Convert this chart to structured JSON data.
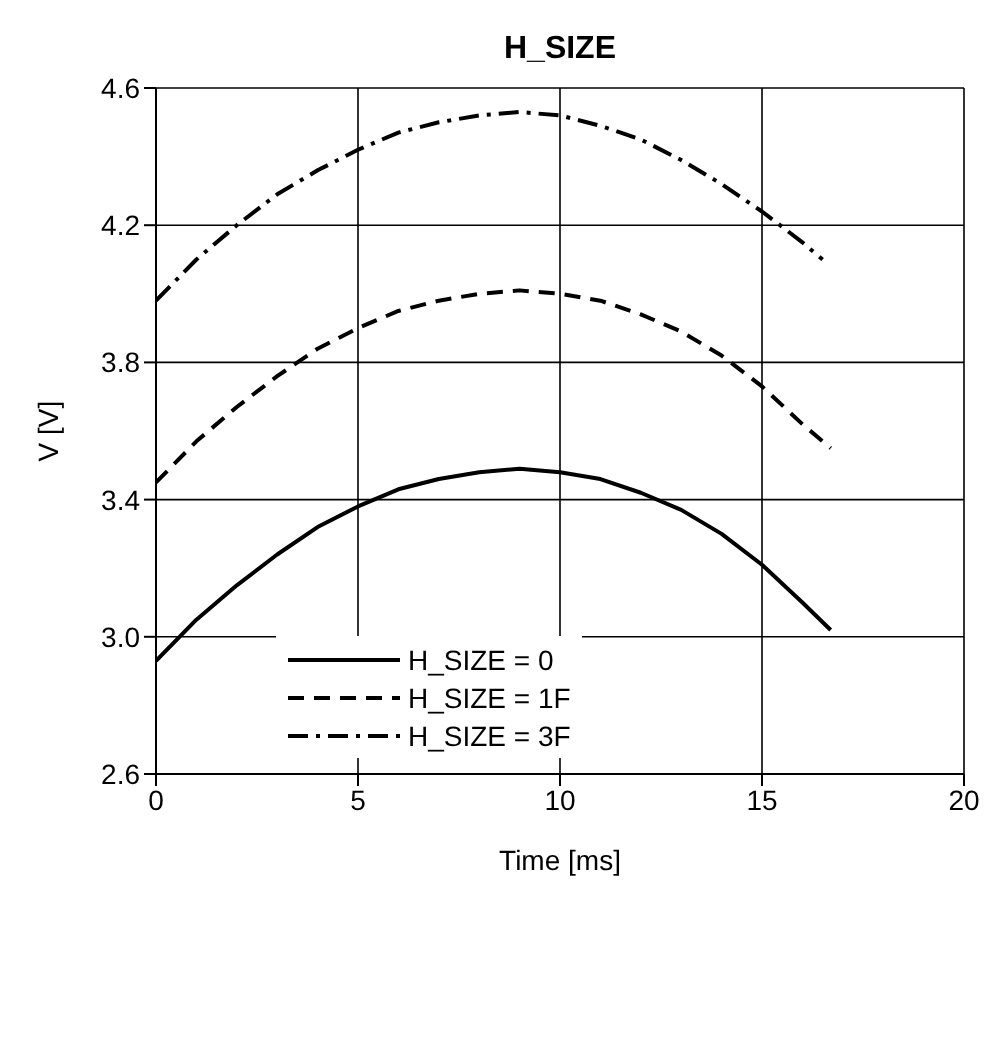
{
  "chart_data": {
    "type": "line",
    "title": "H_SIZE",
    "xlabel": "Time [ms]",
    "ylabel": "V [V]",
    "xlim": [
      0,
      20
    ],
    "xticks": [
      0,
      5,
      10,
      15,
      20
    ],
    "ylim": [
      2.6,
      4.6
    ],
    "yticks": [
      2.6,
      {
        "value": 3,
        "label": "3.0"
      },
      3.4,
      3.8,
      4.2,
      4.6
    ],
    "grid": true,
    "legend": "bottom",
    "marker": "none",
    "series": [
      {
        "name": "H_SIZE = 0",
        "color": "#000000",
        "line_style": "solid",
        "x": [
          0,
          1,
          2,
          3,
          4,
          5,
          6,
          7,
          8,
          9,
          10,
          11,
          12,
          13,
          14,
          15,
          16,
          16.7
        ],
        "values": [
          2.93,
          3.05,
          3.15,
          3.24,
          3.32,
          3.38,
          3.43,
          3.46,
          3.48,
          3.49,
          3.48,
          3.46,
          3.42,
          3.37,
          3.3,
          3.21,
          3.1,
          3.02
        ]
      },
      {
        "name": "H_SIZE = 1F",
        "color": "#000000",
        "line_style": "dashed",
        "x": [
          0,
          1,
          2,
          3,
          4,
          5,
          6,
          7,
          8,
          9,
          10,
          11,
          12,
          13,
          14,
          15,
          16,
          16.7
        ],
        "values": [
          3.45,
          3.57,
          3.67,
          3.76,
          3.84,
          3.9,
          3.95,
          3.98,
          4.0,
          4.01,
          4.0,
          3.98,
          3.94,
          3.89,
          3.82,
          3.73,
          3.62,
          3.55
        ]
      },
      {
        "name": "H_SIZE = 3F",
        "color": "#000000",
        "line_style": "dashdot",
        "x": [
          0,
          1,
          2,
          3,
          4,
          5,
          6,
          7,
          8,
          9,
          10,
          11,
          12,
          13,
          14,
          15,
          16,
          16.5
        ],
        "values": [
          3.98,
          4.1,
          4.2,
          4.29,
          4.36,
          4.42,
          4.47,
          4.5,
          4.52,
          4.53,
          4.52,
          4.49,
          4.45,
          4.39,
          4.32,
          4.24,
          4.15,
          4.1
        ]
      }
    ]
  }
}
